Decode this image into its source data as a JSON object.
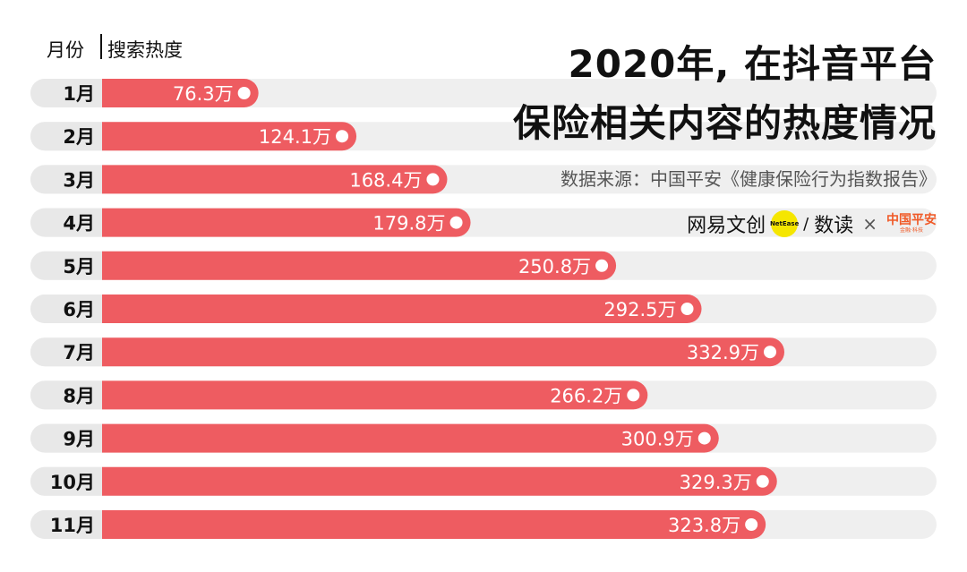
{
  "header": {
    "col_month": "月份",
    "col_heat": "搜索热度"
  },
  "title_line1": "2020年, 在抖音平台",
  "title_line2": "保险相关内容的热度情况",
  "source": "数据来源：中国平安《健康保险行为指数报告》",
  "logos": {
    "netease": "网易文创",
    "netease_en": "NetEase",
    "slash": "/",
    "shudu": "数读",
    "times": "×",
    "pingan": "中国平安",
    "pingan_sub": "金融·科技"
  },
  "colors": {
    "bar": "#ee5c61",
    "track": "#efefef",
    "month_bg": "#e8e8e8"
  },
  "chart_data": {
    "type": "bar",
    "orientation": "horizontal",
    "categories": [
      "1月",
      "2月",
      "3月",
      "4月",
      "5月",
      "6月",
      "7月",
      "8月",
      "9月",
      "10月",
      "11月"
    ],
    "values": [
      76.3,
      124.1,
      168.4,
      179.8,
      250.8,
      292.5,
      332.9,
      266.2,
      300.9,
      329.3,
      323.8
    ],
    "labels": [
      "76.3万",
      "124.1万",
      "168.4万",
      "179.8万",
      "250.8万",
      "292.5万",
      "332.9万",
      "266.2万",
      "300.9万",
      "329.3万",
      "323.8万"
    ],
    "unit": "万",
    "xlim": [
      0,
      400
    ]
  }
}
